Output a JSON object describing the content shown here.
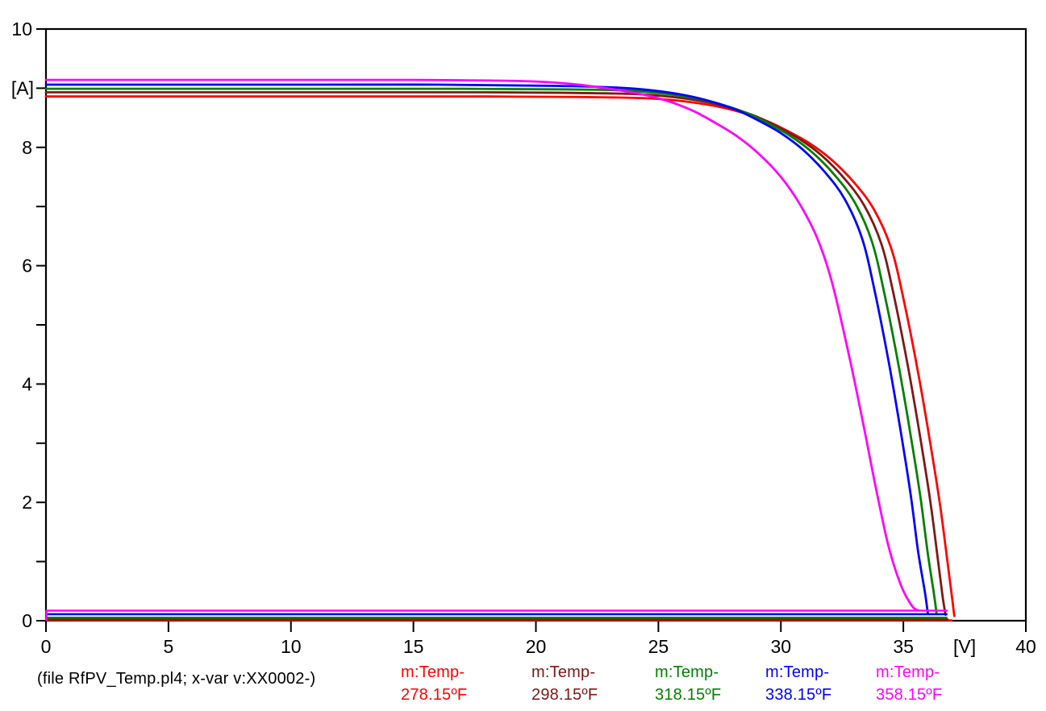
{
  "window": {
    "background": "#FFFFFF"
  },
  "chart_data": {
    "type": "line",
    "title": "",
    "description": "PV module I-V characteristic curves at five temperatures (ATP/PlotXY style plot)",
    "footer": "(file RfPV_Temp.pl4; x-var v:XX0002-)",
    "x_axis": {
      "unit_label": "[V]",
      "min": 0,
      "max": 40,
      "major_ticks": [
        0,
        5,
        10,
        15,
        20,
        25,
        30,
        35,
        40
      ],
      "unit_label_between": [
        35,
        40
      ]
    },
    "y_axis": {
      "unit_label": "[A]",
      "min": 0,
      "max": 10,
      "minor_tick_step": 1,
      "labeled_ticks": [
        0,
        2,
        4,
        6,
        8,
        10
      ],
      "unit_label_at_value": 9
    },
    "grid": false,
    "legend_position": "bottom",
    "series": [
      {
        "name": "m:Temp-",
        "temp": "278.15ºF",
        "color": "#FF0000",
        "isc": 8.86,
        "voc": 37.05,
        "flat_tail_level": 0.005,
        "tail_end_v": 37.0,
        "points": [
          [
            0,
            8.86
          ],
          [
            10,
            8.86
          ],
          [
            18,
            8.86
          ],
          [
            22,
            8.85
          ],
          [
            24.5,
            8.83
          ],
          [
            26,
            8.78
          ],
          [
            27.3,
            8.7
          ],
          [
            28.4,
            8.59
          ],
          [
            29.4,
            8.45
          ],
          [
            30.3,
            8.27
          ],
          [
            31.2,
            8.06
          ],
          [
            32.1,
            7.78
          ],
          [
            33.0,
            7.4
          ],
          [
            33.8,
            6.95
          ],
          [
            34.5,
            6.3
          ],
          [
            35.0,
            5.45
          ],
          [
            35.6,
            4.2
          ],
          [
            36.1,
            3.0
          ],
          [
            36.5,
            1.95
          ],
          [
            36.8,
            1.0
          ],
          [
            37.0,
            0.35
          ],
          [
            37.08,
            0.08
          ]
        ]
      },
      {
        "name": "m:Temp-",
        "temp": "298.15ºF",
        "color": "#7F1717",
        "isc": 8.93,
        "voc": 36.72,
        "flat_tail_level": 0.02,
        "tail_end_v": 36.85,
        "points": [
          [
            0,
            8.93
          ],
          [
            10,
            8.93
          ],
          [
            18,
            8.93
          ],
          [
            21.6,
            8.92
          ],
          [
            24.1,
            8.9
          ],
          [
            25.6,
            8.85
          ],
          [
            26.9,
            8.77
          ],
          [
            28.0,
            8.66
          ],
          [
            29.0,
            8.52
          ],
          [
            29.9,
            8.34
          ],
          [
            30.8,
            8.13
          ],
          [
            31.7,
            7.85
          ],
          [
            32.6,
            7.47
          ],
          [
            33.4,
            7.02
          ],
          [
            34.1,
            6.37
          ],
          [
            34.6,
            5.52
          ],
          [
            35.2,
            4.27
          ],
          [
            35.7,
            3.07
          ],
          [
            36.1,
            2.02
          ],
          [
            36.4,
            1.07
          ],
          [
            36.6,
            0.42
          ],
          [
            36.72,
            0.1
          ]
        ]
      },
      {
        "name": "m:Temp-",
        "temp": "318.15ºF",
        "color": "#008000",
        "isc": 8.99,
        "voc": 36.36,
        "flat_tail_level": 0.05,
        "tail_end_v": 36.8,
        "points": [
          [
            0,
            8.99
          ],
          [
            10,
            8.99
          ],
          [
            17,
            8.99
          ],
          [
            21.2,
            8.98
          ],
          [
            23.7,
            8.96
          ],
          [
            25.2,
            8.91
          ],
          [
            26.5,
            8.83
          ],
          [
            27.6,
            8.72
          ],
          [
            28.6,
            8.58
          ],
          [
            29.5,
            8.4
          ],
          [
            30.4,
            8.19
          ],
          [
            31.3,
            7.91
          ],
          [
            32.2,
            7.53
          ],
          [
            33.0,
            7.08
          ],
          [
            33.7,
            6.43
          ],
          [
            34.2,
            5.58
          ],
          [
            34.8,
            4.33
          ],
          [
            35.3,
            3.13
          ],
          [
            35.7,
            2.08
          ],
          [
            36.0,
            1.13
          ],
          [
            36.25,
            0.45
          ],
          [
            36.36,
            0.11
          ]
        ]
      },
      {
        "name": "m:Temp-",
        "temp": "338.15ºF",
        "color": "#0000FF",
        "isc": 9.06,
        "voc": 36.0,
        "flat_tail_level": 0.11,
        "tail_end_v": 36.8,
        "points": [
          [
            0,
            9.06
          ],
          [
            10,
            9.06
          ],
          [
            16,
            9.06
          ],
          [
            20.8,
            9.04
          ],
          [
            23.3,
            9.01
          ],
          [
            24.8,
            8.96
          ],
          [
            26.1,
            8.88
          ],
          [
            27.2,
            8.77
          ],
          [
            28.2,
            8.63
          ],
          [
            29.1,
            8.45
          ],
          [
            30.0,
            8.24
          ],
          [
            30.9,
            7.96
          ],
          [
            31.8,
            7.58
          ],
          [
            32.6,
            7.13
          ],
          [
            33.3,
            6.48
          ],
          [
            33.8,
            5.63
          ],
          [
            34.4,
            4.38
          ],
          [
            34.9,
            3.18
          ],
          [
            35.3,
            2.13
          ],
          [
            35.6,
            1.18
          ],
          [
            35.88,
            0.48
          ],
          [
            36.0,
            0.12
          ]
        ]
      },
      {
        "name": "m:Temp-",
        "temp": "358.15ºF",
        "color": "#FF00FF",
        "isc": 9.14,
        "voc": 35.62,
        "flat_tail_level": 0.17,
        "tail_end_v": 36.8,
        "points": [
          [
            0,
            9.14
          ],
          [
            8,
            9.14
          ],
          [
            15,
            9.14
          ],
          [
            19.5,
            9.12
          ],
          [
            21.5,
            9.07
          ],
          [
            23,
            8.99
          ],
          [
            24.3,
            8.9
          ],
          [
            25.4,
            8.78
          ],
          [
            26.4,
            8.62
          ],
          [
            27.3,
            8.42
          ],
          [
            28.2,
            8.19
          ],
          [
            29.1,
            7.89
          ],
          [
            30.0,
            7.5
          ],
          [
            30.8,
            7.02
          ],
          [
            31.5,
            6.45
          ],
          [
            32.1,
            5.7
          ],
          [
            32.8,
            4.45
          ],
          [
            33.4,
            3.25
          ],
          [
            33.9,
            2.2
          ],
          [
            34.4,
            1.25
          ],
          [
            34.9,
            0.6
          ],
          [
            35.35,
            0.25
          ],
          [
            35.62,
            0.17
          ]
        ]
      }
    ]
  }
}
